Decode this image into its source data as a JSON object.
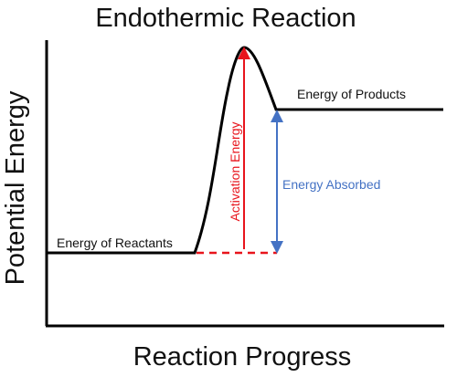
{
  "title": "Endothermic Reaction",
  "axes": {
    "x_label": "Reaction Progress",
    "y_label": "Potential Energy"
  },
  "labels": {
    "reactants": "Energy of Reactants",
    "products": "Energy of Products",
    "activation": "Activation Energy",
    "absorbed": "Energy Absorbed"
  },
  "colors": {
    "curve": "#000000",
    "activation": "#e8141c",
    "absorbed": "#4472c4"
  }
}
